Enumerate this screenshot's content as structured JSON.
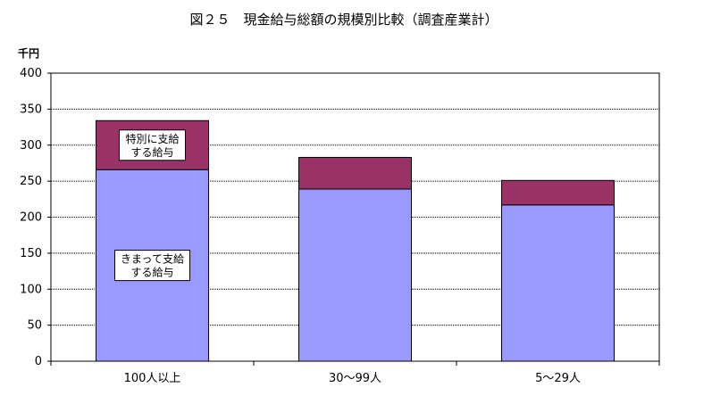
{
  "chart_data": {
    "type": "bar",
    "stacked": true,
    "title": "図２５　現金給与総額の規模別比較（調査産業計）",
    "yunit": "千円",
    "ylim": [
      0,
      400
    ],
    "yticks": [
      0,
      50,
      100,
      150,
      200,
      250,
      300,
      350,
      400
    ],
    "grid": true,
    "categories": [
      "100人以上",
      "30～99人",
      "5～29人"
    ],
    "series": [
      {
        "name": "きまって支給する給与",
        "label_lines": [
          "きまって支給",
          "する給与"
        ],
        "color": "#9999ff",
        "values": [
          266,
          239,
          217
        ]
      },
      {
        "name": "特別に支給する給与",
        "label_lines": [
          "特別に支給",
          "する給与"
        ],
        "color": "#993366",
        "values": [
          68,
          44,
          34
        ]
      }
    ]
  }
}
